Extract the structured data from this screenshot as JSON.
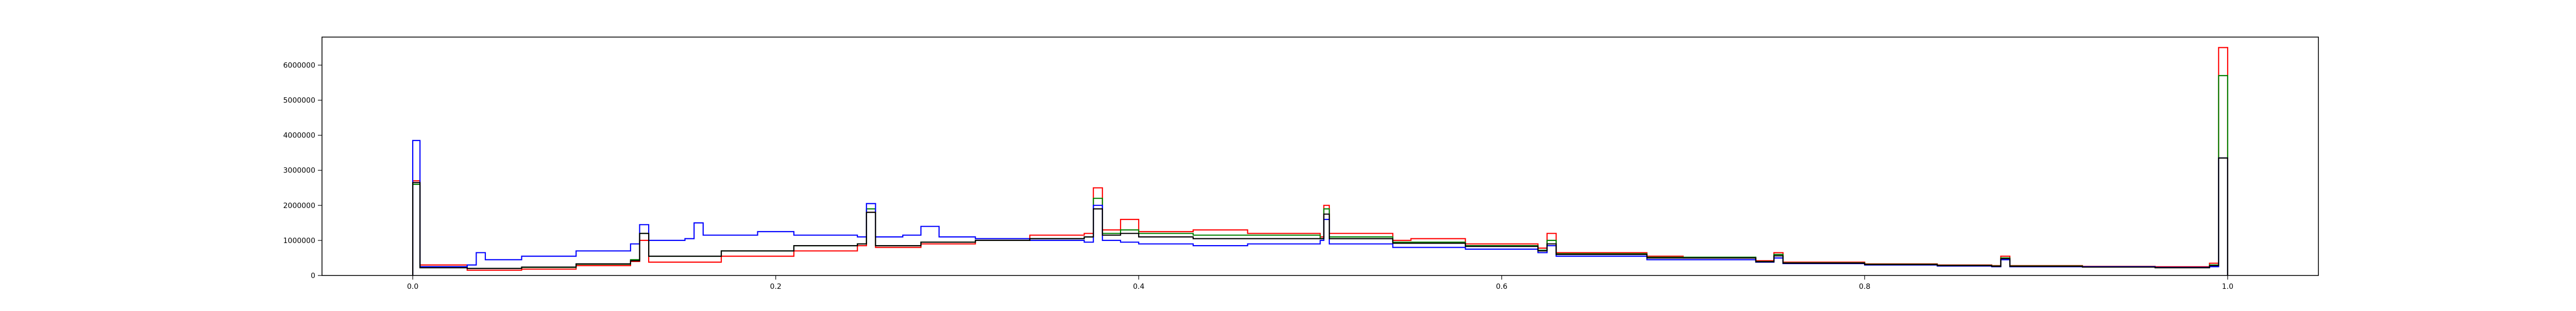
{
  "chart_data": {
    "type": "histogram-step",
    "title": "",
    "xlabel": "",
    "ylabel": "",
    "xlim": [
      -0.05,
      1.05
    ],
    "ylim": [
      0,
      6800000
    ],
    "grid": false,
    "legend": "none",
    "xticks": [
      {
        "value": 0.0,
        "label": "0.0"
      },
      {
        "value": 0.2,
        "label": "0.2"
      },
      {
        "value": 0.4,
        "label": "0.4"
      },
      {
        "value": 0.6,
        "label": "0.6"
      },
      {
        "value": 0.8,
        "label": "0.8"
      },
      {
        "value": 1.0,
        "label": "1.0"
      }
    ],
    "yticks": [
      {
        "value": 0,
        "label": "0"
      },
      {
        "value": 1000000,
        "label": "1000000"
      },
      {
        "value": 2000000,
        "label": "2000000"
      },
      {
        "value": 3000000,
        "label": "3000000"
      },
      {
        "value": 4000000,
        "label": "4000000"
      },
      {
        "value": 5000000,
        "label": "5000000"
      },
      {
        "value": 6000000,
        "label": "6000000"
      }
    ],
    "series": [
      {
        "color": "#ff0000",
        "points": [
          [
            0.0,
            2700000
          ],
          [
            0.004,
            300000
          ],
          [
            0.03,
            150000
          ],
          [
            0.06,
            180000
          ],
          [
            0.09,
            280000
          ],
          [
            0.12,
            400000
          ],
          [
            0.125,
            1000000
          ],
          [
            0.13,
            380000
          ],
          [
            0.17,
            550000
          ],
          [
            0.21,
            700000
          ],
          [
            0.245,
            850000
          ],
          [
            0.25,
            1800000
          ],
          [
            0.255,
            800000
          ],
          [
            0.28,
            900000
          ],
          [
            0.31,
            1000000
          ],
          [
            0.34,
            1150000
          ],
          [
            0.37,
            1200000
          ],
          [
            0.375,
            2500000
          ],
          [
            0.38,
            1300000
          ],
          [
            0.39,
            1600000
          ],
          [
            0.4,
            1250000
          ],
          [
            0.43,
            1300000
          ],
          [
            0.46,
            1200000
          ],
          [
            0.5,
            1100000
          ],
          [
            0.502,
            2000000
          ],
          [
            0.505,
            1200000
          ],
          [
            0.54,
            1000000
          ],
          [
            0.55,
            1050000
          ],
          [
            0.58,
            900000
          ],
          [
            0.62,
            780000
          ],
          [
            0.625,
            1200000
          ],
          [
            0.63,
            650000
          ],
          [
            0.68,
            550000
          ],
          [
            0.7,
            500000
          ],
          [
            0.74,
            420000
          ],
          [
            0.75,
            650000
          ],
          [
            0.755,
            380000
          ],
          [
            0.8,
            330000
          ],
          [
            0.84,
            300000
          ],
          [
            0.87,
            280000
          ],
          [
            0.875,
            550000
          ],
          [
            0.88,
            280000
          ],
          [
            0.92,
            260000
          ],
          [
            0.96,
            250000
          ],
          [
            0.99,
            350000
          ],
          [
            0.995,
            6500000
          ]
        ]
      },
      {
        "color": "#008000",
        "points": [
          [
            0.0,
            2600000
          ],
          [
            0.004,
            250000
          ],
          [
            0.03,
            200000
          ],
          [
            0.06,
            230000
          ],
          [
            0.09,
            320000
          ],
          [
            0.12,
            450000
          ],
          [
            0.125,
            1200000
          ],
          [
            0.13,
            550000
          ],
          [
            0.17,
            700000
          ],
          [
            0.21,
            850000
          ],
          [
            0.245,
            900000
          ],
          [
            0.25,
            1900000
          ],
          [
            0.255,
            850000
          ],
          [
            0.28,
            950000
          ],
          [
            0.31,
            1000000
          ],
          [
            0.34,
            1050000
          ],
          [
            0.37,
            1100000
          ],
          [
            0.375,
            2200000
          ],
          [
            0.38,
            1200000
          ],
          [
            0.39,
            1300000
          ],
          [
            0.4,
            1200000
          ],
          [
            0.43,
            1150000
          ],
          [
            0.46,
            1150000
          ],
          [
            0.5,
            1050000
          ],
          [
            0.502,
            1900000
          ],
          [
            0.505,
            1100000
          ],
          [
            0.54,
            950000
          ],
          [
            0.58,
            850000
          ],
          [
            0.62,
            720000
          ],
          [
            0.625,
            1000000
          ],
          [
            0.63,
            620000
          ],
          [
            0.68,
            520000
          ],
          [
            0.74,
            400000
          ],
          [
            0.75,
            600000
          ],
          [
            0.755,
            360000
          ],
          [
            0.8,
            320000
          ],
          [
            0.84,
            290000
          ],
          [
            0.87,
            270000
          ],
          [
            0.875,
            500000
          ],
          [
            0.88,
            270000
          ],
          [
            0.92,
            250000
          ],
          [
            0.96,
            230000
          ],
          [
            0.99,
            300000
          ],
          [
            0.995,
            5700000
          ]
        ]
      },
      {
        "color": "#0000ff",
        "points": [
          [
            0.0,
            3850000
          ],
          [
            0.004,
            250000
          ],
          [
            0.03,
            300000
          ],
          [
            0.035,
            650000
          ],
          [
            0.04,
            450000
          ],
          [
            0.06,
            550000
          ],
          [
            0.09,
            700000
          ],
          [
            0.12,
            900000
          ],
          [
            0.125,
            1450000
          ],
          [
            0.13,
            1000000
          ],
          [
            0.15,
            1050000
          ],
          [
            0.155,
            1500000
          ],
          [
            0.16,
            1150000
          ],
          [
            0.19,
            1250000
          ],
          [
            0.21,
            1150000
          ],
          [
            0.245,
            1100000
          ],
          [
            0.25,
            2050000
          ],
          [
            0.255,
            1100000
          ],
          [
            0.27,
            1150000
          ],
          [
            0.28,
            1400000
          ],
          [
            0.29,
            1100000
          ],
          [
            0.31,
            1050000
          ],
          [
            0.34,
            1000000
          ],
          [
            0.37,
            950000
          ],
          [
            0.375,
            2000000
          ],
          [
            0.38,
            1000000
          ],
          [
            0.39,
            950000
          ],
          [
            0.4,
            900000
          ],
          [
            0.43,
            850000
          ],
          [
            0.46,
            900000
          ],
          [
            0.5,
            1000000
          ],
          [
            0.502,
            1600000
          ],
          [
            0.505,
            900000
          ],
          [
            0.54,
            800000
          ],
          [
            0.58,
            750000
          ],
          [
            0.62,
            650000
          ],
          [
            0.625,
            850000
          ],
          [
            0.63,
            550000
          ],
          [
            0.68,
            450000
          ],
          [
            0.74,
            380000
          ],
          [
            0.75,
            500000
          ],
          [
            0.755,
            340000
          ],
          [
            0.8,
            300000
          ],
          [
            0.84,
            270000
          ],
          [
            0.87,
            250000
          ],
          [
            0.875,
            450000
          ],
          [
            0.88,
            250000
          ],
          [
            0.92,
            250000
          ],
          [
            0.96,
            230000
          ],
          [
            0.99,
            250000
          ],
          [
            0.995,
            3350000
          ]
        ]
      },
      {
        "color": "#000000",
        "points": [
          [
            0.0,
            2650000
          ],
          [
            0.004,
            220000
          ],
          [
            0.03,
            200000
          ],
          [
            0.06,
            240000
          ],
          [
            0.09,
            330000
          ],
          [
            0.12,
            420000
          ],
          [
            0.125,
            1200000
          ],
          [
            0.13,
            550000
          ],
          [
            0.17,
            700000
          ],
          [
            0.21,
            850000
          ],
          [
            0.245,
            900000
          ],
          [
            0.25,
            1800000
          ],
          [
            0.255,
            850000
          ],
          [
            0.28,
            950000
          ],
          [
            0.31,
            1000000
          ],
          [
            0.34,
            1050000
          ],
          [
            0.37,
            1100000
          ],
          [
            0.375,
            1900000
          ],
          [
            0.38,
            1150000
          ],
          [
            0.39,
            1200000
          ],
          [
            0.4,
            1100000
          ],
          [
            0.43,
            1050000
          ],
          [
            0.46,
            1050000
          ],
          [
            0.5,
            1050000
          ],
          [
            0.502,
            1750000
          ],
          [
            0.505,
            1050000
          ],
          [
            0.54,
            920000
          ],
          [
            0.58,
            830000
          ],
          [
            0.62,
            700000
          ],
          [
            0.625,
            900000
          ],
          [
            0.63,
            600000
          ],
          [
            0.68,
            500000
          ],
          [
            0.74,
            390000
          ],
          [
            0.75,
            560000
          ],
          [
            0.755,
            350000
          ],
          [
            0.8,
            310000
          ],
          [
            0.84,
            280000
          ],
          [
            0.87,
            260000
          ],
          [
            0.875,
            480000
          ],
          [
            0.88,
            260000
          ],
          [
            0.92,
            240000
          ],
          [
            0.96,
            220000
          ],
          [
            0.99,
            280000
          ],
          [
            0.995,
            3350000
          ]
        ]
      }
    ]
  }
}
